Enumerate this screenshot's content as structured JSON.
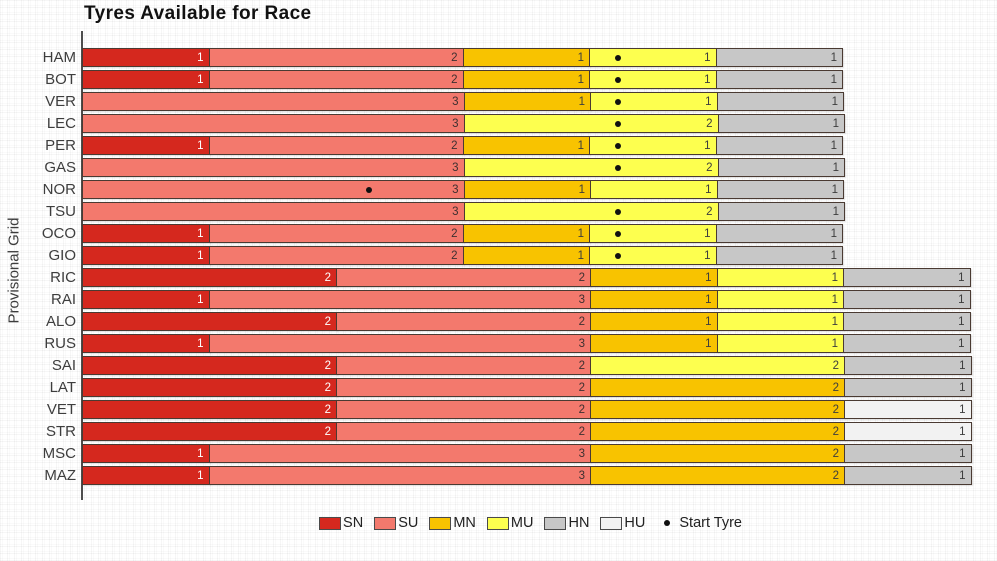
{
  "chart_data": {
    "type": "bar",
    "variant": "horizontal_stacked",
    "title": "Tyres Available for Race",
    "xlabel": "",
    "ylabel": "Provisional Grid",
    "x_axis_visible": false,
    "xlim": [
      0,
      7
    ],
    "unit": "tyre sets (1 unit = 1 set, segment labels show set counts)",
    "grid": "faint graph-paper background texture, no plot gridlines",
    "legend_position": "bottom-center",
    "categories": [
      "HAM",
      "BOT",
      "VER",
      "LEC",
      "PER",
      "GAS",
      "NOR",
      "TSU",
      "OCO",
      "GIO",
      "RIC",
      "RAI",
      "ALO",
      "RUS",
      "SAI",
      "LAT",
      "VET",
      "STR",
      "MSC",
      "MAZ"
    ],
    "series": [
      {
        "name": "SN",
        "color": "#d5281e",
        "text_color": "#ffffff",
        "values": [
          1,
          1,
          0,
          0,
          1,
          0,
          0,
          0,
          1,
          1,
          2,
          1,
          2,
          1,
          2,
          2,
          2,
          2,
          1,
          1
        ]
      },
      {
        "name": "SU",
        "color": "#f3796d",
        "text_color": "#3d3030",
        "values": [
          2,
          2,
          3,
          3,
          2,
          3,
          3,
          3,
          2,
          2,
          2,
          3,
          2,
          3,
          2,
          2,
          2,
          2,
          3,
          3
        ]
      },
      {
        "name": "MN",
        "color": "#f8c300",
        "text_color": "#3d3d3d",
        "values": [
          1,
          1,
          1,
          0,
          1,
          0,
          1,
          0,
          1,
          1,
          1,
          1,
          1,
          1,
          0,
          2,
          2,
          2,
          2,
          2
        ]
      },
      {
        "name": "MU",
        "color": "#fdff4f",
        "text_color": "#3d3d3d",
        "values": [
          1,
          1,
          1,
          2,
          1,
          2,
          1,
          2,
          1,
          1,
          1,
          1,
          1,
          1,
          2,
          0,
          0,
          0,
          0,
          0
        ]
      },
      {
        "name": "HN",
        "color": "#c7c7c7",
        "text_color": "#3d3d3d",
        "values": [
          1,
          1,
          1,
          1,
          1,
          1,
          1,
          1,
          1,
          1,
          1,
          1,
          1,
          1,
          1,
          1,
          0,
          0,
          1,
          1
        ]
      },
      {
        "name": "HU",
        "color": "#f2f2f2",
        "text_color": "#3d3d3d",
        "values": [
          0,
          0,
          0,
          0,
          0,
          0,
          0,
          0,
          0,
          0,
          0,
          0,
          0,
          0,
          0,
          0,
          1,
          1,
          0,
          0
        ]
      }
    ],
    "start_tyre_dots_units": [
      4.2,
      4.2,
      4.2,
      4.2,
      4.2,
      4.2,
      2.25,
      4.2,
      4.2,
      4.2,
      null,
      null,
      null,
      null,
      null,
      null,
      null,
      null,
      null,
      null
    ],
    "totals_per_driver": [
      6,
      6,
      6,
      6,
      6,
      6,
      6,
      6,
      6,
      6,
      7,
      7,
      7,
      7,
      7,
      7,
      7,
      7,
      7,
      7
    ]
  },
  "legend": {
    "start_tyre_label": "Start Tyre"
  }
}
